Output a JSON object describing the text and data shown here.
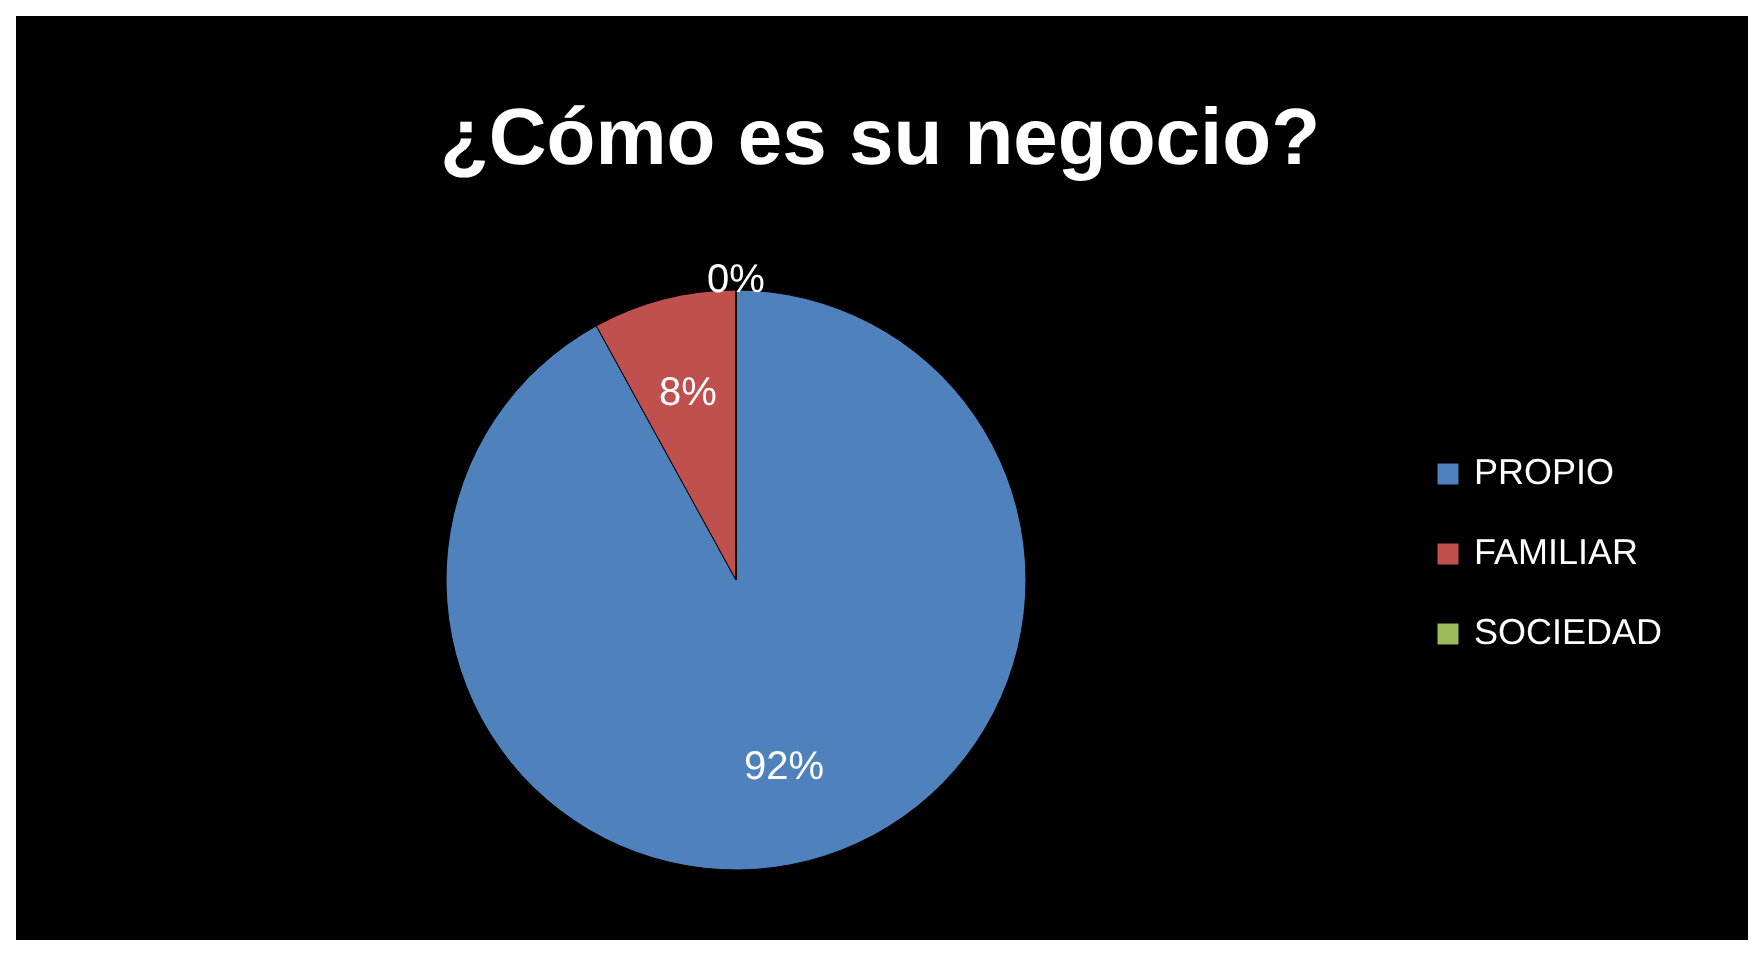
{
  "chart_data": {
    "type": "pie",
    "title": "¿Cómo es su negocio?",
    "categories": [
      "PROPIO",
      "FAMILIAR",
      "SOCIEDAD"
    ],
    "values": [
      92,
      8,
      0
    ],
    "colors": [
      "#4f81bd",
      "#c0504d",
      "#9bbb59"
    ],
    "value_labels": [
      "92%",
      "8%",
      "0%"
    ],
    "legend": "right"
  }
}
